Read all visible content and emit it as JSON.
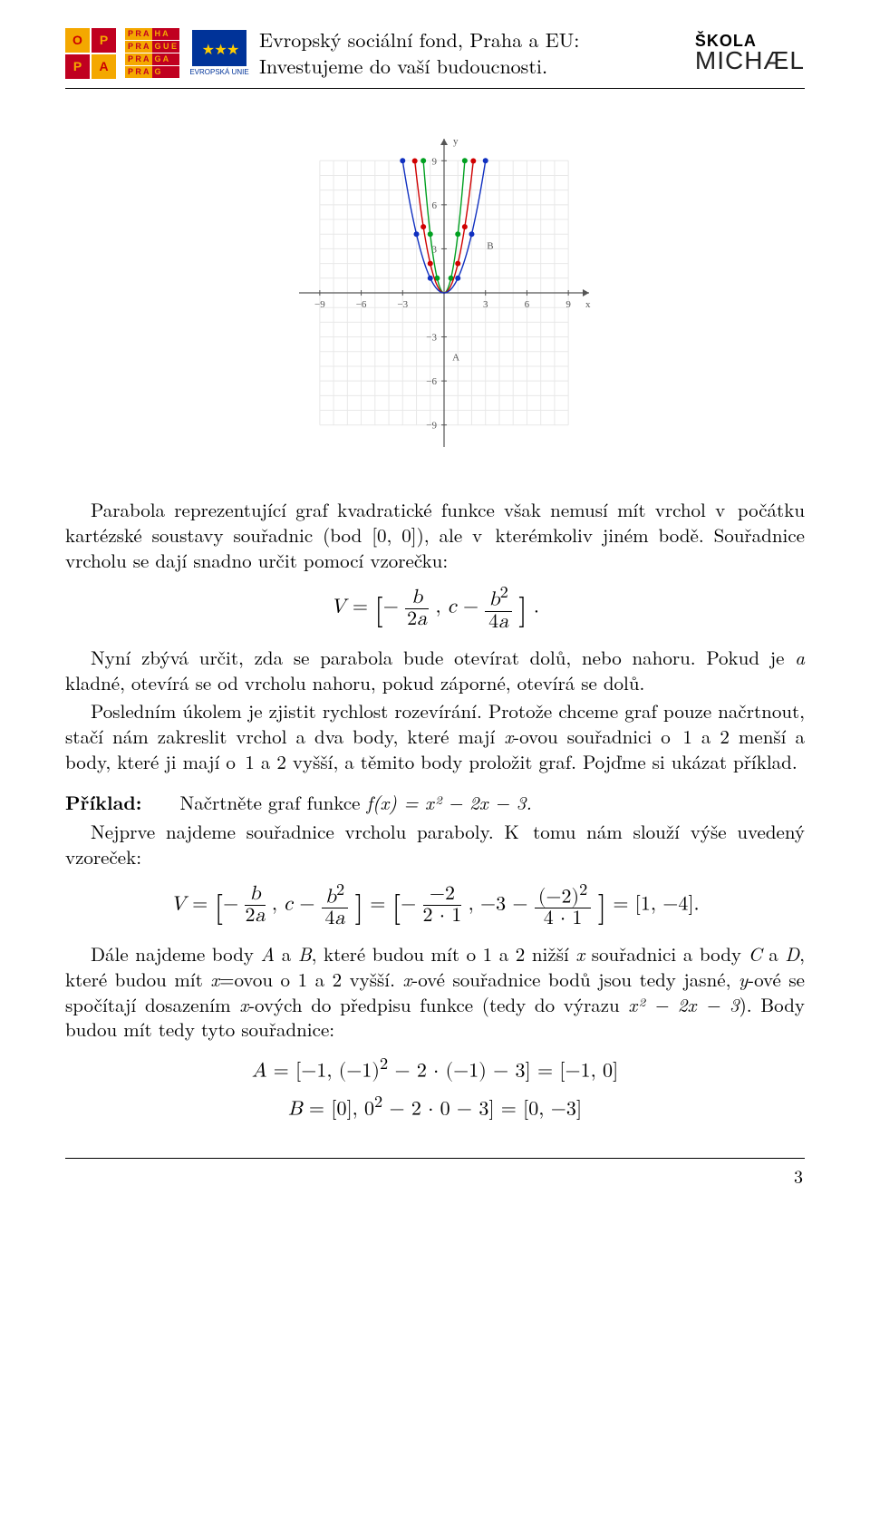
{
  "header": {
    "opp_letters": [
      "O",
      "P",
      "P",
      "A"
    ],
    "prague_left": [
      "P R A",
      "P R A",
      "P R A",
      "P R A"
    ],
    "prague_right": [
      "H A",
      "G U E",
      "G A",
      "G"
    ],
    "eu_label": "EVROPSKÁ UNIE",
    "text_line1": "Evropský sociální fond, Praha a EU:",
    "text_line2": "Investujeme do vaší budoucnosti.",
    "skola_top": "ŠKOLA",
    "skola_bot": "MICHÆL"
  },
  "chart": {
    "xlim": [
      -10.5,
      10.5
    ],
    "ylim": [
      -10.5,
      10.5
    ],
    "tick_step": 3,
    "ticks": [
      -9,
      -6,
      -3,
      3,
      6,
      9
    ],
    "x_axis_label": "x",
    "y_axis_label": "y",
    "axis_color": "#555555",
    "grid_color": "#e8e8e8",
    "background_color": "#ffffff",
    "curves": [
      {
        "color": "#00a020",
        "a": 4,
        "points_x": [
          -1.5,
          -1,
          -0.5,
          0.5,
          1,
          1.5
        ]
      },
      {
        "color": "#d00000",
        "a": 2,
        "points_x": [
          -2.12,
          -1.5,
          -1,
          1,
          1.5,
          2.12
        ]
      },
      {
        "color": "#1030c0",
        "a": 1,
        "points_x": [
          -3,
          -2,
          -1,
          1,
          2,
          3
        ]
      }
    ],
    "label_A": "A",
    "label_B": "B",
    "A_pos": [
      0.6,
      -4.6
    ],
    "B_pos": [
      3.1,
      3
    ]
  },
  "text": {
    "para1": "Parabola reprezentující graf kvadratické funkce však nemusí mít vrchol v počátku kartézské soustavy souřadnic (bod [0, 0]), ale v kterémkoliv jiném bodě. Souřadnice vrcholu se dají snadno určit pomocí vzorečku:",
    "para2a": "Nyní zbývá určit, zda se parabola bude otevírat dolů, nebo nahoru. Pokud je ",
    "para2_a": "a",
    "para2b": " kladné, otevírá se od vrcholu nahoru, pokud záporné, otevírá se dolů.",
    "para3a": "Posledním úkolem je zjistit rychlost rozevírání. Protože chceme graf pouze načrtnout, stačí nám zakreslit vrchol a dva body, které mají ",
    "para3_x": "x",
    "para3b": "-ovou souřadnici o 1 a 2 menší a body, které ji mají o 1 a 2 vyšší, a těmito body proložit graf. Pojďme si ukázat příklad.",
    "priklad_label": "Příklad:",
    "priklad_text": "Načrtněte graf funkce ",
    "priklad_fn": "f(x) = x² − 2x − 3.",
    "para4": "Nejprve najdeme souřadnice vrcholu paraboly. K tomu nám slouží výše uvedený vzoreček:",
    "para5a": "Dále najdeme body ",
    "para5_A": "A",
    "para5b": " a ",
    "para5_B": "B",
    "para5c": ", které budou mít o 1 a 2 nižší ",
    "para5_x1": "x",
    "para5d": " souřadnici a body ",
    "para5_C": "C",
    "para5e": " a ",
    "para5_D": "D",
    "para5f": ", které budou mít ",
    "para5_x2": "x",
    "para5g": "=ovou o 1 a 2 vyšší. ",
    "para5_x3": "x",
    "para5h": "-ové souřadnice bodů jsou tedy jasné, ",
    "para5_y": "y",
    "para5i": "-ové se spočítají dosazením ",
    "para5_x4": "x",
    "para5j": "-ových do předpisu funkce (tedy do výrazu ",
    "para5_expr": "x² − 2x − 3",
    "para5k": "). Body budou mít tedy tyto souřadnice:"
  },
  "formulas": {
    "f1_lhs": "V",
    "f1_eq": " = ",
    "f1_body": "⎡− b/(2a) , c − b²/(4a)⎤",
    "f2": "V = [− b/(2a) , c − b²/(4a)] = [− (−2)/(2·1) , −3 − (−2)²/(4·1)] = [1, −4].",
    "fA": "A = [−1, (−1)² − 2 · (−1) − 3] = [−1, 0]",
    "fB": "B = [0], 0² − 2 · 0 − 3] = [0, −3]"
  },
  "page_number": "3"
}
